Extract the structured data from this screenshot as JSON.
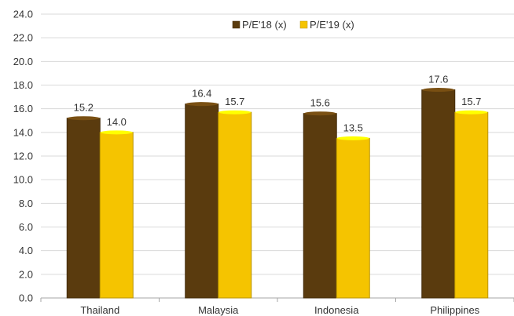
{
  "chart_data": {
    "type": "bar",
    "title": "",
    "xlabel": "",
    "ylabel": "",
    "categories": [
      "Thailand",
      "Malaysia",
      "Indonesia",
      "Philippines"
    ],
    "series": [
      {
        "name": "P/E'18 (x)",
        "values": [
          15.2,
          16.4,
          15.6,
          17.6
        ],
        "labels": [
          "15.2",
          "16.4",
          "15.6",
          "17.6"
        ],
        "color": "#5a3b0e"
      },
      {
        "name": "P/E'19 (x)",
        "values": [
          14.0,
          15.7,
          13.5,
          15.7
        ],
        "labels": [
          "14.0",
          "15.7",
          "13.5",
          "15.7"
        ],
        "color": "#f5c400"
      }
    ],
    "ylim": [
      0,
      24
    ],
    "yticks": [
      0,
      2,
      4,
      6,
      8,
      10,
      12,
      14,
      16,
      18,
      20,
      22,
      24
    ],
    "ytick_labels": [
      "0.0",
      "2.0",
      "4.0",
      "6.0",
      "8.0",
      "10.0",
      "12.0",
      "14.0",
      "16.0",
      "18.0",
      "20.0",
      "22.0",
      "24.0"
    ],
    "grid": true,
    "legend_position": "top-center"
  }
}
